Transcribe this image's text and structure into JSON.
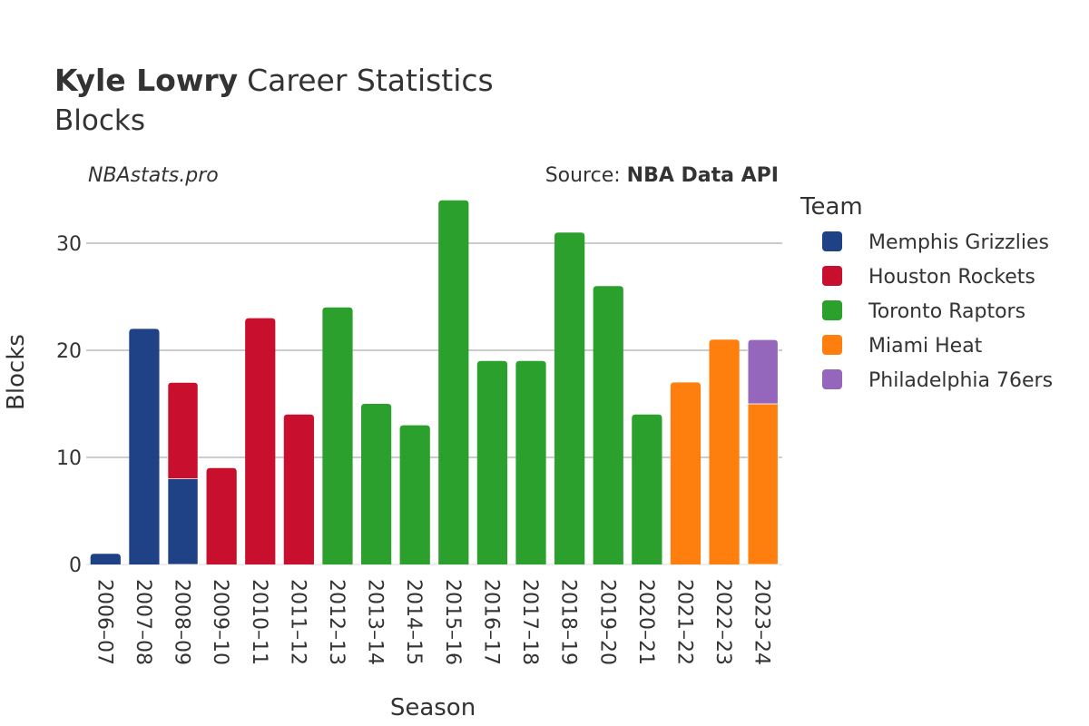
{
  "header": {
    "title_bold": "Kyle Lowry",
    "title_rest": "Career Statistics",
    "subtitle": "Blocks"
  },
  "credits": {
    "site": "NBAstats.pro",
    "source_prefix": "Source: ",
    "source_name": "NBA Data API"
  },
  "chart_data": {
    "type": "bar",
    "stacked": true,
    "xlabel": "Season",
    "ylabel": "Blocks",
    "ylim": [
      0,
      35
    ],
    "yticks": [
      0,
      10,
      20,
      30
    ],
    "grid": true,
    "legend_title": "Team",
    "legend_position": "right",
    "categories": [
      "2006–07",
      "2007–08",
      "2008–09",
      "2009–10",
      "2010–11",
      "2011–12",
      "2012–13",
      "2013–14",
      "2014–15",
      "2015–16",
      "2016–17",
      "2017–18",
      "2018–19",
      "2019–20",
      "2020–21",
      "2021–22",
      "2022–23",
      "2023–24"
    ],
    "series": [
      {
        "name": "Memphis Grizzlies",
        "color": "#1f4287",
        "values": [
          1,
          22,
          8,
          0,
          0,
          0,
          0,
          0,
          0,
          0,
          0,
          0,
          0,
          0,
          0,
          0,
          0,
          0
        ]
      },
      {
        "name": "Houston Rockets",
        "color": "#c8102e",
        "values": [
          0,
          0,
          9,
          9,
          23,
          14,
          0,
          0,
          0,
          0,
          0,
          0,
          0,
          0,
          0,
          0,
          0,
          0
        ]
      },
      {
        "name": "Toronto Raptors",
        "color": "#2ca02c",
        "values": [
          0,
          0,
          0,
          0,
          0,
          0,
          24,
          15,
          13,
          34,
          19,
          19,
          31,
          26,
          14,
          0,
          0,
          0
        ]
      },
      {
        "name": "Miami Heat",
        "color": "#ff7f0e",
        "values": [
          0,
          0,
          0,
          0,
          0,
          0,
          0,
          0,
          0,
          0,
          0,
          0,
          0,
          0,
          0,
          17,
          21,
          15
        ]
      },
      {
        "name": "Philadelphia 76ers",
        "color": "#9467bd",
        "values": [
          0,
          0,
          0,
          0,
          0,
          0,
          0,
          0,
          0,
          0,
          0,
          0,
          0,
          0,
          0,
          0,
          0,
          6
        ]
      }
    ]
  }
}
